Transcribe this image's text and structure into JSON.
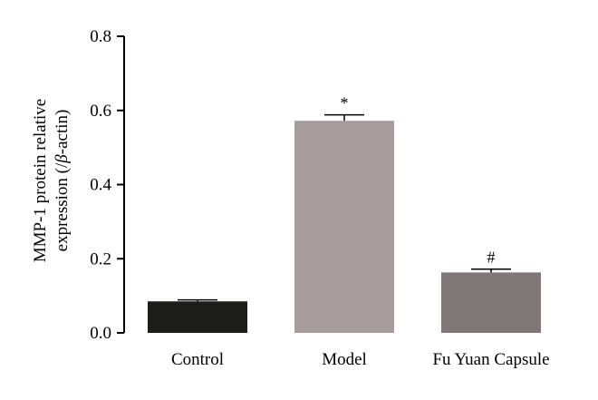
{
  "chart_data": {
    "type": "bar",
    "categories": [
      "Control",
      "Model",
      "Fu Yuan Capsule"
    ],
    "values": [
      0.085,
      0.572,
      0.163
    ],
    "errors": [
      0.004,
      0.016,
      0.009
    ],
    "annotations": [
      "",
      "*",
      "#"
    ],
    "colors": [
      "#1c1c1a",
      "#a69c9b",
      "#807877"
    ],
    "ylabel_line1": "MMP-1 protein relative",
    "ylabel_line2": "expression (/",
    "ylabel_beta": "β",
    "ylabel_line2_end": "-actin)",
    "xlabel": "",
    "ylim": [
      0,
      0.8
    ],
    "yticks": [
      "0.0",
      "0.2",
      "0.4",
      "0.6",
      "0.8"
    ],
    "ytick_values": [
      0,
      0.2,
      0.4,
      0.6,
      0.8
    ],
    "grid": false
  }
}
